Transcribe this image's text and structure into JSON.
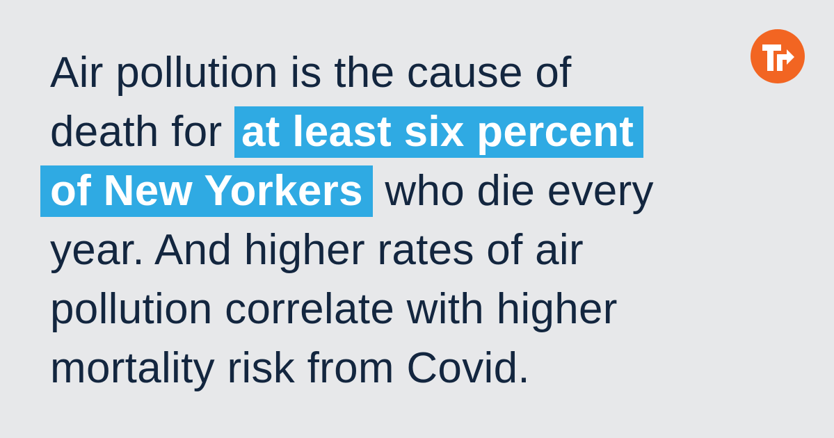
{
  "brand": {
    "logo_icon": "turn-right-arrow-t-icon",
    "logo_color": "#f26522"
  },
  "colors": {
    "background": "#e7e8ea",
    "text": "#13263f",
    "highlight": "#2faae3",
    "highlight_text": "#ffffff"
  },
  "quote": {
    "line1": "Air pollution is the cause of",
    "line2_prefix": "death for ",
    "line2_highlight": "at least six percent",
    "line3_highlight": "of New Yorkers",
    "line3_suffix": " who die every",
    "line4": "year. And higher rates of air",
    "line5": "pollution correlate with higher",
    "line6": "mortality risk from Covid."
  }
}
